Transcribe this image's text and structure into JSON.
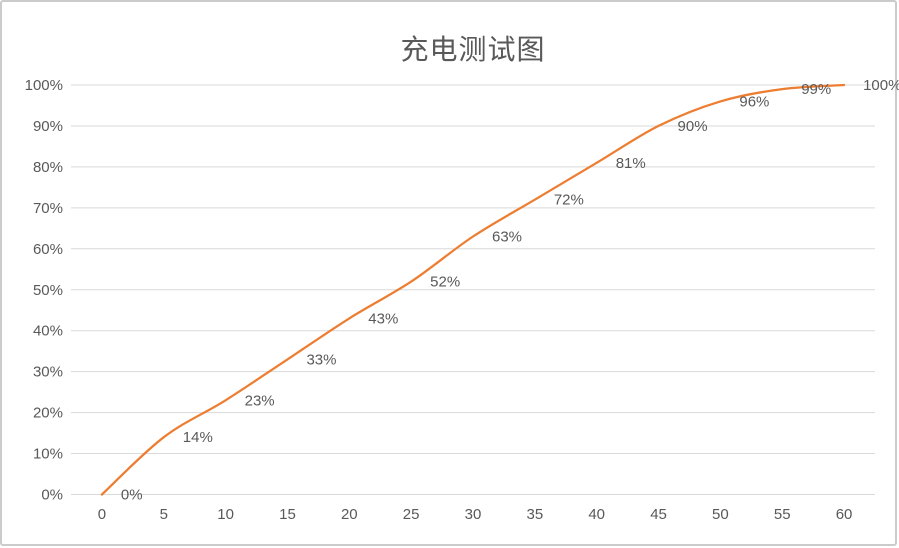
{
  "window": {
    "background_color": "#ffffff",
    "border_color": "#cbcbcb"
  },
  "chart_data": {
    "type": "line",
    "title": "充电测试图",
    "xlabel": "",
    "ylabel": "",
    "x": [
      0,
      5,
      10,
      15,
      20,
      25,
      30,
      35,
      40,
      45,
      50,
      55,
      60
    ],
    "values": [
      0,
      14,
      23,
      33,
      43,
      52,
      63,
      72,
      81,
      90,
      96,
      99,
      100
    ],
    "data_labels": [
      "0%",
      "14%",
      "23%",
      "33%",
      "43%",
      "52%",
      "63%",
      "72%",
      "81%",
      "90%",
      "96%",
      "99%",
      "100%"
    ],
    "x_tick_labels": [
      "0",
      "5",
      "10",
      "15",
      "20",
      "25",
      "30",
      "35",
      "40",
      "45",
      "50",
      "55",
      "60"
    ],
    "y_tick_labels": [
      "0%",
      "10%",
      "20%",
      "30%",
      "40%",
      "50%",
      "60%",
      "70%",
      "80%",
      "90%",
      "100%"
    ],
    "ylim": [
      0,
      100
    ],
    "y_step": 10,
    "grid": "horizontal",
    "legend_position": "none",
    "smooth_line": true,
    "line_color": "#ED7D31",
    "grid_color": "#D9D9D9",
    "axis_color": "#D9D9D9",
    "text_color": "#595959",
    "title_color": "#595959"
  }
}
